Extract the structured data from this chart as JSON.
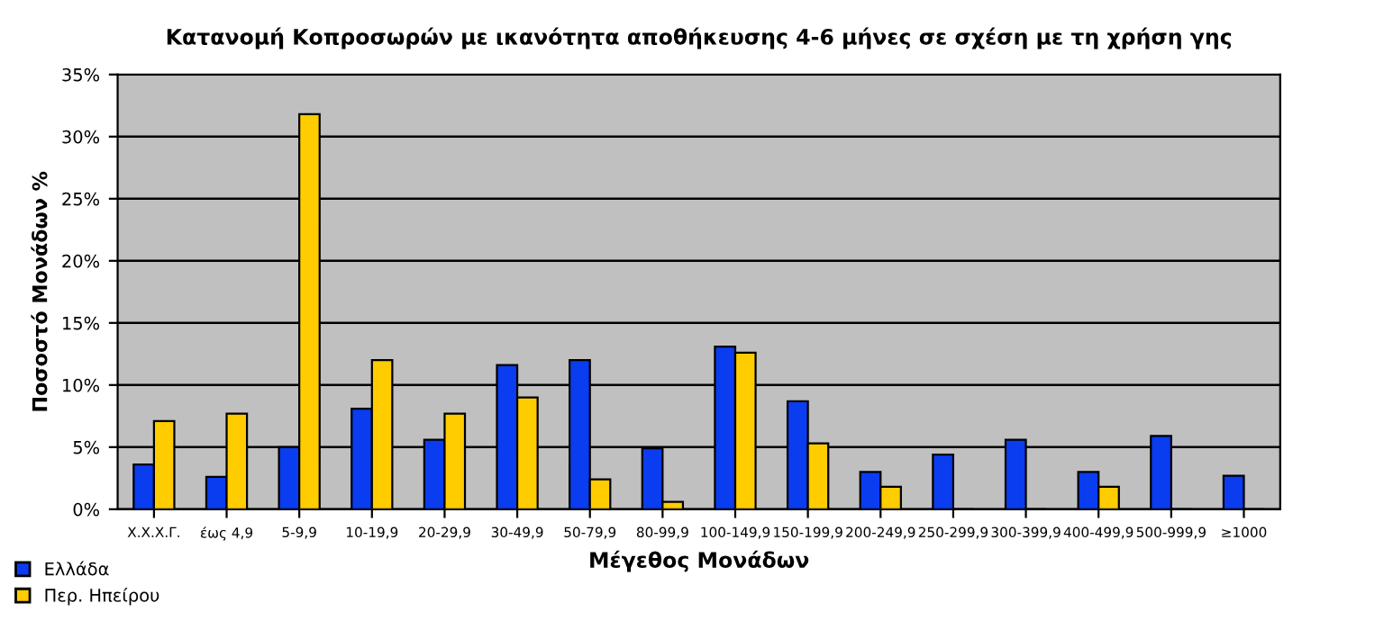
{
  "chart_data": {
    "type": "bar",
    "title": "Κατανομή Κοπροσωρών με ικανότητα αποθήκευσης 4-6 μήνες σε σχέση με τη χρήση γης",
    "xlabel": "Μέγεθος Μονάδων",
    "ylabel": "Ποσοστό Μονάδων %",
    "categories": [
      "Χ.Χ.Χ.Γ.",
      "έως 4,9",
      "5-9,9",
      "10-19,9",
      "20-29,9",
      "30-49,9",
      "50-79,9",
      "80-99,9",
      "100-149,9",
      "150-199,9",
      "200-249,9",
      "250-299,9",
      "300-399,9",
      "400-499,9",
      "500-999,9",
      "≥1000"
    ],
    "series": [
      {
        "name": "Ελλάδα",
        "color": "#0a3cf0",
        "values": [
          3.6,
          2.6,
          5.0,
          8.1,
          5.6,
          11.6,
          12.0,
          4.9,
          13.1,
          8.7,
          3.0,
          4.4,
          5.6,
          3.0,
          5.9,
          2.7
        ]
      },
      {
        "name": "Περ. Ηπείρου",
        "color": "#ffcc00",
        "values": [
          7.1,
          7.7,
          31.8,
          12.0,
          7.7,
          9.0,
          2.4,
          0.6,
          12.6,
          5.3,
          1.8,
          0,
          0,
          1.8,
          0,
          0
        ]
      }
    ],
    "ylim": [
      0,
      35
    ],
    "yticks": [
      {
        "value": 0,
        "label": "0%"
      },
      {
        "value": 5,
        "label": "5%"
      },
      {
        "value": 10,
        "label": "10%"
      },
      {
        "value": 15,
        "label": "15%"
      },
      {
        "value": 20,
        "label": "20%"
      },
      {
        "value": 25,
        "label": "25%"
      },
      {
        "value": 30,
        "label": "30%"
      },
      {
        "value": 35,
        "label": "35%"
      }
    ],
    "grid": "y",
    "legend": "bottom left"
  }
}
